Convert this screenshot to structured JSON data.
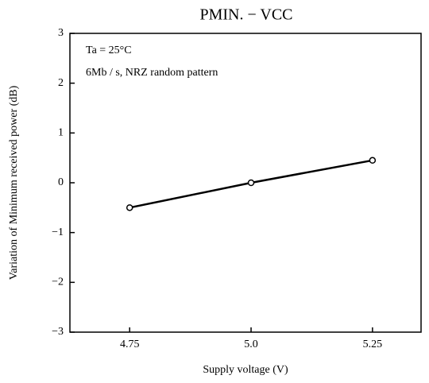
{
  "chart_data": {
    "type": "line",
    "title": "PMIN. − VCC",
    "annotations": [
      "Ta = 25°C",
      "6Mb / s, NRZ random pattern"
    ],
    "x_label": "Supply voltage (V)",
    "y_label": "Variation of Minimum received power (dB)",
    "x": [
      4.75,
      5.0,
      5.25
    ],
    "series": [
      {
        "name": null,
        "color": "#000000",
        "values": [
          -0.5,
          0,
          0.45
        ]
      }
    ],
    "xlim": [
      4.627,
      5.35
    ],
    "xticks": [
      4.75,
      {
        "value": 5,
        "label": "5.0"
      },
      5.25
    ],
    "ylim": [
      -3,
      3
    ],
    "yticks": [
      {
        "value": -3,
        "label": "−3"
      },
      {
        "value": -2,
        "label": "−2"
      },
      {
        "value": -1,
        "label": "−1"
      },
      0,
      1,
      2,
      3
    ],
    "grid": false
  }
}
